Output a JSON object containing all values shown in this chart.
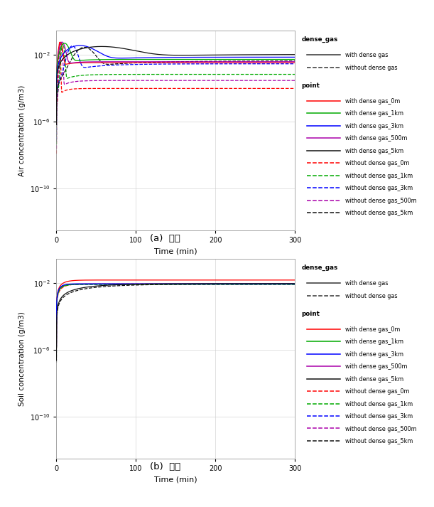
{
  "fig_width": 6.11,
  "fig_height": 7.13,
  "dpi": 100,
  "background_color": "#ffffff",
  "panel_bg": "#ffffff",
  "grid_color": "#cccccc",
  "colors": {
    "0m": "#FF0000",
    "1km": "#00AA00",
    "3km": "#0000FF",
    "500m": "#AA00AA",
    "5km": "#111111"
  },
  "xlabel": "Time (min)",
  "ylabel_a": "Air concentration (g/m3)",
  "ylabel_b": "Soil concentration (g/m3)",
  "caption_a": "(a)  대기",
  "caption_b": "(b)  토양",
  "xmax": 300,
  "xmin": 0,
  "ylim_a": [
    3e-13,
    0.3
  ],
  "ylim_b": [
    3e-13,
    0.3
  ],
  "legend_dense_gas_title": "dense_gas",
  "legend_point_title": "point",
  "legend_items_dense": [
    {
      "label": "with dense gas",
      "linestyle": "-",
      "color": "#333333"
    },
    {
      "label": "without dense gas",
      "linestyle": "--",
      "color": "#333333"
    }
  ],
  "legend_items_point_a": [
    {
      "label": "with dense gas_0m",
      "color": "#FF0000",
      "linestyle": "-"
    },
    {
      "label": "with dense gas_1km",
      "color": "#00AA00",
      "linestyle": "-"
    },
    {
      "label": "with dense gas_3km",
      "color": "#0000FF",
      "linestyle": "-"
    },
    {
      "label": "with dense gas_500m",
      "color": "#AA00AA",
      "linestyle": "-"
    },
    {
      "label": "with dense gas_5km",
      "color": "#111111",
      "linestyle": "-"
    },
    {
      "label": "without dense gas_0m",
      "color": "#FF0000",
      "linestyle": "--"
    },
    {
      "label": "without dense gas_1km",
      "color": "#00AA00",
      "linestyle": "--"
    },
    {
      "label": "without dense gas_3km",
      "color": "#0000FF",
      "linestyle": "--"
    },
    {
      "label": "without dense gas_500m",
      "color": "#AA00AA",
      "linestyle": "--"
    },
    {
      "label": "without dense gas_5km",
      "color": "#111111",
      "linestyle": "--"
    }
  ],
  "legend_items_point_b": [
    {
      "label": "with dense gas_0m",
      "color": "#FF0000",
      "linestyle": "-"
    },
    {
      "label": "with dense gas_1km",
      "color": "#00AA00",
      "linestyle": "-"
    },
    {
      "label": "with dense gas_3km",
      "color": "#0000FF",
      "linestyle": "-"
    },
    {
      "label": "with dense gas_500m",
      "color": "#AA00AA",
      "linestyle": "-"
    },
    {
      "label": "with dense gas_5km",
      "color": "#111111",
      "linestyle": "-"
    },
    {
      "label": "without dense gas_0m",
      "color": "#FF0000",
      "linestyle": "--"
    },
    {
      "label": "without dense gas_1km",
      "color": "#00AA00",
      "linestyle": "--"
    },
    {
      "label": "without dense gas_3km",
      "color": "#0000FF",
      "linestyle": "--"
    },
    {
      "label": "without dense gas_500m",
      "color": "#AA00AA",
      "linestyle": "--"
    },
    {
      "label": "without dense gas_5km",
      "color": "#111111",
      "linestyle": "--"
    }
  ],
  "yticks": [
    1e-10,
    1e-06,
    0.01
  ],
  "xticks": [
    0,
    100,
    200,
    300
  ]
}
